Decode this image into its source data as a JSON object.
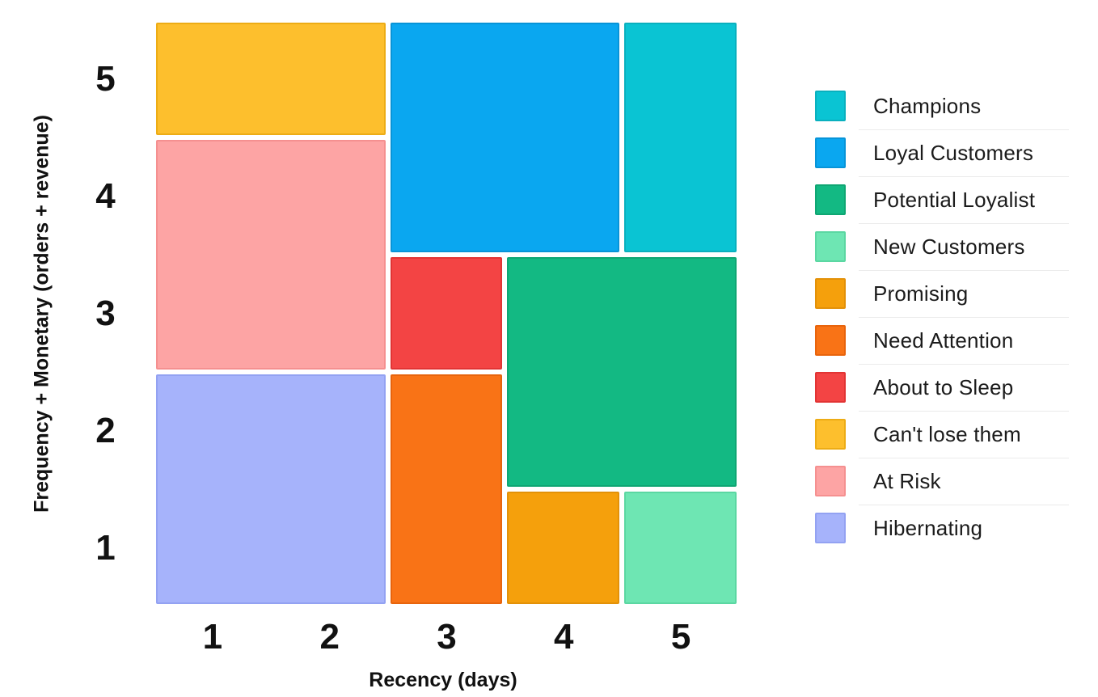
{
  "page": {
    "background": "#ffffff"
  },
  "chart_data": {
    "type": "heatmap",
    "subtype": "rfm-customer-segment-map",
    "title": "",
    "xlabel": "Recency (days)",
    "ylabel": "Frequency + Monetary (orders + revenue)",
    "x_ticks": [
      1,
      2,
      3,
      4,
      5
    ],
    "y_ticks": [
      5,
      4,
      3,
      2,
      1
    ],
    "xlim": [
      0.5,
      5.5
    ],
    "ylim": [
      0.5,
      5.5
    ],
    "grid": false,
    "legend_position": "right",
    "segments": [
      {
        "label": "Can't lose them",
        "x": [
          0.5,
          2.5
        ],
        "y": [
          4.5,
          5.5
        ],
        "recency": "1-2",
        "frequency_monetary": "5",
        "fill": "#fdbf2d",
        "border": "#edac15"
      },
      {
        "label": "At Risk",
        "x": [
          0.5,
          2.5
        ],
        "y": [
          2.5,
          4.5
        ],
        "recency": "1-2",
        "frequency_monetary": "3-4",
        "fill": "#fda4a4",
        "border": "#f59090"
      },
      {
        "label": "Hibernating",
        "x": [
          0.5,
          2.5
        ],
        "y": [
          0.5,
          2.5
        ],
        "recency": "1-2",
        "frequency_monetary": "1-2",
        "fill": "#a6b3fb",
        "border": "#93a2f2"
      },
      {
        "label": "Loyal Customers",
        "x": [
          2.5,
          4.5
        ],
        "y": [
          3.5,
          5.5
        ],
        "recency": "3-4",
        "frequency_monetary": "4-5",
        "fill": "#0aa7f0",
        "border": "#0794d8"
      },
      {
        "label": "Champions",
        "x": [
          4.5,
          5.5
        ],
        "y": [
          3.5,
          5.5
        ],
        "recency": "5",
        "frequency_monetary": "4-5",
        "fill": "#0ac4d3",
        "border": "#09b0be"
      },
      {
        "label": "About to Sleep",
        "x": [
          2.5,
          3.5
        ],
        "y": [
          2.5,
          3.5
        ],
        "recency": "3",
        "frequency_monetary": "3",
        "fill": "#f34444",
        "border": "#e23434"
      },
      {
        "label": "Need Attention",
        "x": [
          2.5,
          3.5
        ],
        "y": [
          0.5,
          2.5
        ],
        "recency": "3",
        "frequency_monetary": "1-2",
        "fill": "#f97316",
        "border": "#e8640c"
      },
      {
        "label": "Potential Loyalist",
        "x": [
          3.5,
          5.5
        ],
        "y": [
          1.5,
          3.5
        ],
        "recency": "4-5",
        "frequency_monetary": "2-3",
        "fill": "#13b983",
        "border": "#0fa673"
      },
      {
        "label": "Promising",
        "x": [
          3.5,
          4.5
        ],
        "y": [
          0.5,
          1.5
        ],
        "recency": "4",
        "frequency_monetary": "1",
        "fill": "#f5a00c",
        "border": "#e39108"
      },
      {
        "label": "New Customers",
        "x": [
          4.5,
          5.5
        ],
        "y": [
          0.5,
          1.5
        ],
        "recency": "5",
        "frequency_monetary": "1",
        "fill": "#6ee6b3",
        "border": "#5bd7a2"
      }
    ]
  },
  "legend": {
    "items": [
      {
        "label": "Champions",
        "color": "#0ac4d3",
        "border": "#09b0be"
      },
      {
        "label": "Loyal Customers",
        "color": "#0aa7f0",
        "border": "#0794d8"
      },
      {
        "label": "Potential Loyalist",
        "color": "#13b983",
        "border": "#0fa673"
      },
      {
        "label": "New Customers",
        "color": "#6ee6b3",
        "border": "#5bd7a2"
      },
      {
        "label": "Promising",
        "color": "#f5a00c",
        "border": "#e39108"
      },
      {
        "label": "Need Attention",
        "color": "#f97316",
        "border": "#e8640c"
      },
      {
        "label": "About to Sleep",
        "color": "#f34444",
        "border": "#e23434"
      },
      {
        "label": "Can't lose them",
        "color": "#fdbf2d",
        "border": "#edac15"
      },
      {
        "label": "At Risk",
        "color": "#fda4a4",
        "border": "#f59090"
      },
      {
        "label": "Hibernating",
        "color": "#a6b3fb",
        "border": "#93a2f2"
      }
    ]
  }
}
